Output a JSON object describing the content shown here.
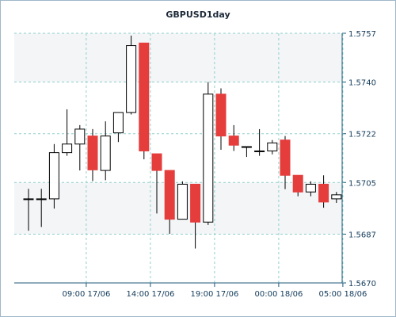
{
  "colors": {
    "background": "#ffffff",
    "plot_top_bg": "#f3f5f7",
    "grid": "#8fd0cc",
    "axis": "#1e5a7a",
    "bullish_body": "#ffffff",
    "bearish_body": "#e53c3c",
    "wick": "#000000",
    "text": "#123a5a"
  },
  "chart_data": {
    "type": "candlestick",
    "title": "GBPUSD1day",
    "xlabel": "",
    "ylabel": "",
    "ylim": [
      1.567,
      1.5757
    ],
    "y_ticks": [
      "1.5757",
      "1.5740",
      "1.5722",
      "1.5705",
      "1.5687",
      "1.5670"
    ],
    "x_tick_labels": [
      "09:00 17/06",
      "14:00 17/06",
      "19:00 17/06",
      "00:00 18/06",
      "05:00 18/06"
    ],
    "x_tick_candle_index": [
      4.5,
      9.5,
      14.5,
      19.5,
      24.5
    ],
    "candles": [
      {
        "open": 1.56993,
        "high": 1.57028,
        "low": 1.56882,
        "close": 1.56993
      },
      {
        "open": 1.56993,
        "high": 1.57028,
        "low": 1.56895,
        "close": 1.56993
      },
      {
        "open": 1.56993,
        "high": 1.57184,
        "low": 1.56959,
        "close": 1.57154
      },
      {
        "open": 1.57154,
        "high": 1.57305,
        "low": 1.57143,
        "close": 1.57184
      },
      {
        "open": 1.57184,
        "high": 1.5725,
        "low": 1.57092,
        "close": 1.57236
      },
      {
        "open": 1.57212,
        "high": 1.57236,
        "low": 1.57055,
        "close": 1.57094
      },
      {
        "open": 1.57092,
        "high": 1.57263,
        "low": 1.57058,
        "close": 1.57212
      },
      {
        "open": 1.57223,
        "high": 1.57294,
        "low": 1.57191,
        "close": 1.57294
      },
      {
        "open": 1.57294,
        "high": 1.57562,
        "low": 1.57287,
        "close": 1.57527
      },
      {
        "open": 1.57536,
        "high": 1.57536,
        "low": 1.57131,
        "close": 1.5716
      },
      {
        "open": 1.5715,
        "high": 1.5715,
        "low": 1.56942,
        "close": 1.57092
      },
      {
        "open": 1.57092,
        "high": 1.57092,
        "low": 1.56871,
        "close": 1.56922
      },
      {
        "open": 1.56922,
        "high": 1.57054,
        "low": 1.56922,
        "close": 1.57044
      },
      {
        "open": 1.57044,
        "high": 1.57044,
        "low": 1.5682,
        "close": 1.56912
      },
      {
        "open": 1.56912,
        "high": 1.574,
        "low": 1.56902,
        "close": 1.57358
      },
      {
        "open": 1.57358,
        "high": 1.57378,
        "low": 1.57164,
        "close": 1.57212
      },
      {
        "open": 1.57212,
        "high": 1.5725,
        "low": 1.5716,
        "close": 1.5718
      },
      {
        "open": 1.57175,
        "high": 1.57175,
        "low": 1.57139,
        "close": 1.57175
      },
      {
        "open": 1.5716,
        "high": 1.57236,
        "low": 1.57143,
        "close": 1.5716
      },
      {
        "open": 1.5716,
        "high": 1.57198,
        "low": 1.57148,
        "close": 1.57188
      },
      {
        "open": 1.57198,
        "high": 1.57212,
        "low": 1.57027,
        "close": 1.57075
      },
      {
        "open": 1.57075,
        "high": 1.57075,
        "low": 1.57002,
        "close": 1.57017
      },
      {
        "open": 1.57017,
        "high": 1.57054,
        "low": 1.57002,
        "close": 1.57044
      },
      {
        "open": 1.57044,
        "high": 1.57075,
        "low": 1.56962,
        "close": 1.56982
      },
      {
        "open": 1.56993,
        "high": 1.57017,
        "low": 1.56979,
        "close": 1.57007
      }
    ]
  }
}
